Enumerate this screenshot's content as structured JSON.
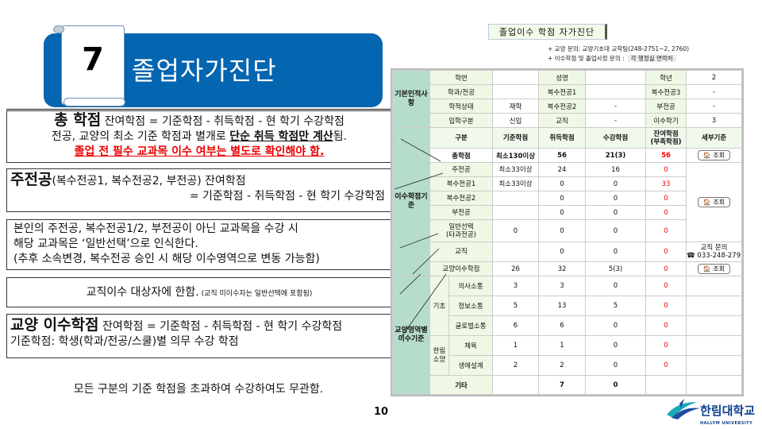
{
  "header": {
    "number": "7",
    "title": "졸업자가진단"
  },
  "boxes": {
    "total": {
      "heading": "총 학점",
      "formula": " 잔여학점 = 기준학점 - 취득학점 - 현 학기 수강학점",
      "line2_pre": "전공, 교양의 최소 기준 학점과 별개로 ",
      "line2_emph": "단순 취득 학점만 계산",
      "line2_post": "됨.",
      "warning": "졸업 전 필수 교과목 이수 여부는 별도로 확인해야 함."
    },
    "major": {
      "heading": "주전공",
      "paren": "(복수전공1, 복수전공2, 부전공) 잔여학점",
      "formula": "= 기준학점 - 취득학점 - 현 학기 수강학점"
    },
    "general": {
      "line1": "본인의 주전공, 복수전공1/2, 부전공이 아닌 교과목을 수강 시",
      "line2": "해당 교과목은 ‘일반선택’으로 인식한다.",
      "line3": "(추후 소속변경, 복수전공 승인 시 해당 이수영역으로 변동 가능함)"
    },
    "teaching": {
      "main": "교직이수 대상자에 한함.",
      "note": " (교직 미이수자는 일반선택에 포함됨)"
    },
    "liberal": {
      "heading": "교양 이수학점",
      "formula": " 잔여학점 = 기준학점 - 취득학점 - 현 학기 수강학점",
      "line2": "기준학점: 학생(학과/전공/스쿨)별 의무 수강 학점"
    },
    "footer": "모든 구분의 기준 학점을 초과하여 수강하여도 무관함."
  },
  "page_number": "10",
  "panel": {
    "title": "졸업이수 학점 자가진단",
    "note1": "+ 교양 문의: 교양기초대 교학팀(248-2751~2, 2760)",
    "note2": "+ 이수학점 및 졸업사정 문의 :",
    "note2_contact": "각 행정실 연락처"
  },
  "table": {
    "basic_group": "기본인적사항",
    "basic": [
      [
        "학번",
        "",
        "성명",
        "",
        "학년",
        "2"
      ],
      [
        "학과/전공",
        "",
        "복수전공1",
        "",
        "복수전공3",
        "-"
      ],
      [
        "학적상태",
        "재학",
        "복수전공2",
        "-",
        "부전공",
        "-"
      ],
      [
        "입학구분",
        "신입",
        "교직",
        "-",
        "이수학기",
        "3"
      ]
    ],
    "credit_group": "이수학점기준",
    "headers": [
      "구분",
      "기준학점",
      "취득학점",
      "수강학점",
      "잔여학점\n(부족학점)",
      "세부기준"
    ],
    "total": [
      "총학점",
      "최소130이상",
      "56",
      "21(3)",
      "56"
    ],
    "rows": [
      [
        "주전공",
        "최소33이상",
        "24",
        "16",
        "0"
      ],
      [
        "복수전공1",
        "최소33이상",
        "0",
        "0",
        "33"
      ],
      [
        "복수전공2",
        "",
        "0",
        "0",
        "0"
      ],
      [
        "부전공",
        "",
        "0",
        "0",
        "0"
      ],
      [
        "일반선택\n(타과전공)",
        "0",
        "0",
        "0",
        "0"
      ],
      [
        "교직",
        "",
        "0",
        "0",
        "0"
      ],
      [
        "교양이수학점",
        "26",
        "32",
        "5(3)",
        "0"
      ]
    ],
    "view_button": "조회",
    "teaching_contact": "교직 문의",
    "teaching_phone": "☎ 033-248-2791",
    "liberal_group": "교양영역별 이수기준",
    "sub_basic": "기초",
    "sub_hallym": "한림소양",
    "liberal_rows": [
      [
        "의사소통",
        "3",
        "3",
        "0",
        "0"
      ],
      [
        "정보소통",
        "5",
        "13",
        "5",
        "0"
      ],
      [
        "글로벌소통",
        "6",
        "6",
        "0",
        "0"
      ],
      [
        "체육",
        "1",
        "1",
        "0",
        "0"
      ],
      [
        "생애설계",
        "2",
        "2",
        "0",
        "0"
      ]
    ],
    "other": [
      "기타",
      "",
      "7",
      "0"
    ]
  },
  "logo": {
    "name": "한림대학교",
    "sub": "HALLYM UNIVERSITY"
  },
  "colors": {
    "banner": "#0465b1",
    "remaining": "#ff0000",
    "group_label": "#b6ddca"
  }
}
